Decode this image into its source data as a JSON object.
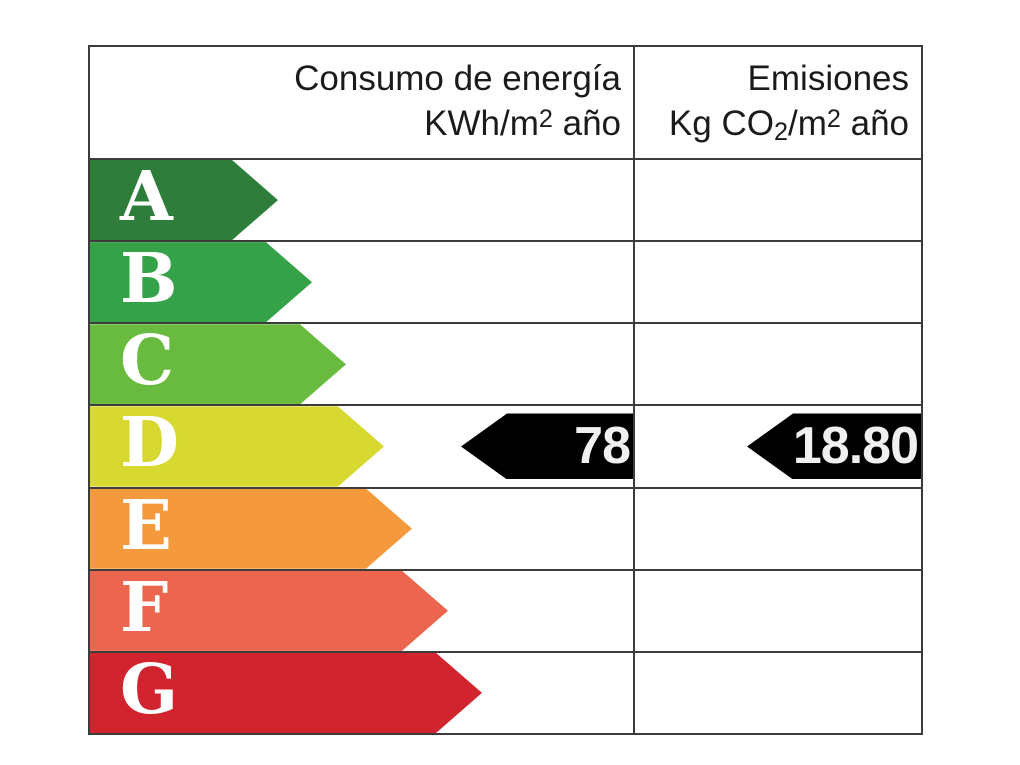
{
  "certificate": {
    "border_color": "#3c3c3a",
    "header": {
      "consumo_line1": "Consumo de energía",
      "consumo_line2": [
        {
          "text": "KWh/m",
          "script": "none"
        },
        {
          "text": "2",
          "script": "sup"
        },
        {
          "text": " año",
          "script": "none"
        }
      ],
      "emisiones_line1": "Emisiones",
      "emisiones_line2": [
        {
          "text": "Kg CO",
          "script": "none"
        },
        {
          "text": "2",
          "script": "sub"
        },
        {
          "text": "/m",
          "script": "none"
        },
        {
          "text": "2",
          "script": "sup"
        },
        {
          "text": " año",
          "script": "none"
        }
      ]
    },
    "indicator": {
      "fill_color": "#000000",
      "text_color": "#f0f0f0"
    }
  },
  "chart_data": {
    "type": "table",
    "columns": [
      "Consumo de energía KWh/m2 año",
      "Emisiones Kg CO2/m2 año"
    ],
    "ratings": [
      {
        "letter": "A",
        "color": "#2e7d3b",
        "arrow_width": 188
      },
      {
        "letter": "B",
        "color": "#35a149",
        "arrow_width": 222
      },
      {
        "letter": "C",
        "color": "#69bb40",
        "arrow_width": 256
      },
      {
        "letter": "D",
        "color": "#d7d931",
        "arrow_width": 294
      },
      {
        "letter": "E",
        "color": "#f59a3c",
        "arrow_width": 322
      },
      {
        "letter": "F",
        "color": "#eb654f",
        "arrow_width": 358
      },
      {
        "letter": "G",
        "color": "#d1242f",
        "arrow_width": 392
      }
    ],
    "current_rating": "D",
    "consumo_value": "78",
    "emisiones_value": "18.80"
  }
}
